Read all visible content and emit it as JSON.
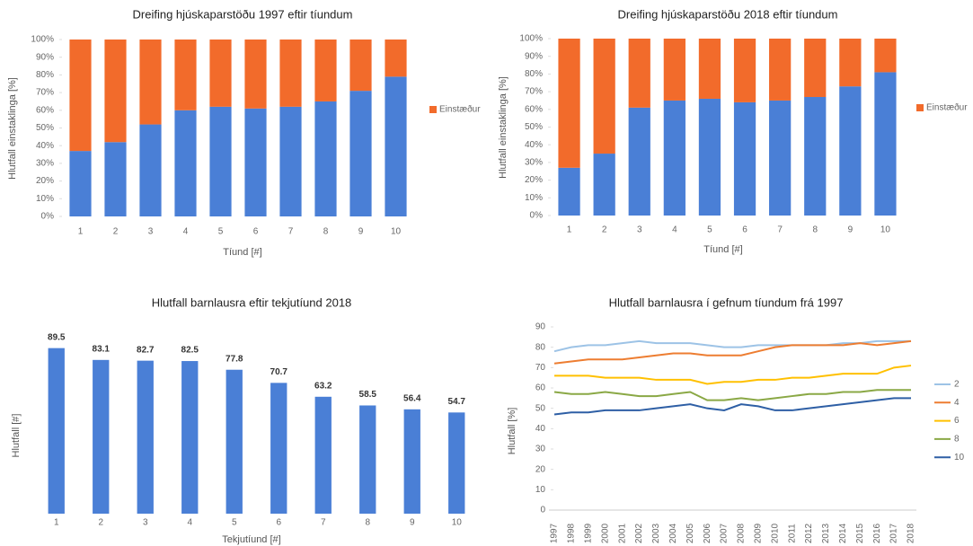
{
  "chart_data": [
    {
      "type": "bar",
      "stacked": true,
      "title": "Dreifing hjúskaparstöðu 1997 eftir tíundum",
      "x_label": "Tíund [#]",
      "y_label": "Hlutfall einstaklinga [%]",
      "categories": [
        "1",
        "2",
        "3",
        "4",
        "5",
        "6",
        "7",
        "8",
        "9",
        "10"
      ],
      "series": [
        {
          "color": "#4a7fd6",
          "values": [
            37,
            42,
            52,
            60,
            62,
            61,
            62,
            65,
            71,
            79
          ]
        },
        {
          "name": "Einstæður",
          "color": "#f26b2b",
          "values": [
            63,
            58,
            48,
            40,
            38,
            39,
            38,
            35,
            29,
            21
          ]
        }
      ],
      "ylim": [
        0,
        100
      ],
      "yticks": [
        {
          "value": 0,
          "label": "0%"
        },
        {
          "value": 10,
          "label": "10%"
        },
        {
          "value": 20,
          "label": "20%"
        },
        {
          "value": 30,
          "label": "30%"
        },
        {
          "value": 40,
          "label": "40%"
        },
        {
          "value": 50,
          "label": "50%"
        },
        {
          "value": 60,
          "label": "60%"
        },
        {
          "value": 70,
          "label": "70%"
        },
        {
          "value": 80,
          "label": "80%"
        },
        {
          "value": 90,
          "label": "90%"
        },
        {
          "value": 100,
          "label": "100%"
        }
      ],
      "legend": "right"
    },
    {
      "type": "bar",
      "stacked": true,
      "title": "Dreifing hjúskaparstöðu 2018 eftir tíundum",
      "x_label": "Tíund [#]",
      "y_label": "Hlutfall einstaklinga [%]",
      "categories": [
        "1",
        "2",
        "3",
        "4",
        "5",
        "6",
        "7",
        "8",
        "9",
        "10"
      ],
      "series": [
        {
          "color": "#4a7fd6",
          "values": [
            27,
            35,
            61,
            65,
            66,
            64,
            65,
            67,
            73,
            81
          ]
        },
        {
          "name": "Einstæður",
          "color": "#f26b2b",
          "values": [
            73,
            65,
            39,
            35,
            34,
            36,
            35,
            33,
            27,
            19
          ]
        }
      ],
      "ylim": [
        0,
        100
      ],
      "yticks": [
        {
          "value": 0,
          "label": "0%"
        },
        {
          "value": 10,
          "label": "10%"
        },
        {
          "value": 20,
          "label": "20%"
        },
        {
          "value": 30,
          "label": "30%"
        },
        {
          "value": 40,
          "label": "40%"
        },
        {
          "value": 50,
          "label": "50%"
        },
        {
          "value": 60,
          "label": "60%"
        },
        {
          "value": 70,
          "label": "70%"
        },
        {
          "value": 80,
          "label": "80%"
        },
        {
          "value": 90,
          "label": "90%"
        },
        {
          "value": 100,
          "label": "100%"
        }
      ],
      "legend": "right"
    },
    {
      "type": "bar",
      "title": "Hlutfall barnlausra eftir tekjutíund 2018",
      "x_label": "Tekjutíund [#]",
      "y_label": "Hlutfall [#]",
      "categories": [
        "1",
        "2",
        "3",
        "4",
        "5",
        "6",
        "7",
        "8",
        "9",
        "10"
      ],
      "series": [
        {
          "color": "#4a7fd6",
          "values": [
            89.5,
            83.1,
            82.7,
            82.5,
            77.8,
            70.7,
            63.2,
            58.5,
            56.4,
            54.7
          ]
        }
      ],
      "ylim": [
        0,
        100
      ],
      "data_labels": true
    },
    {
      "type": "line",
      "title": "Hlutfall barnlausra í gefnum tíundum frá 1997",
      "y_label": "Hlutfall [%]",
      "x": [
        1997,
        1998,
        1999,
        2000,
        2001,
        2002,
        2003,
        2004,
        2005,
        2006,
        2007,
        2008,
        2009,
        2010,
        2011,
        2012,
        2013,
        2014,
        2015,
        2016,
        2017,
        2018
      ],
      "xlim": [
        1997,
        2018
      ],
      "series": [
        {
          "name": "2",
          "color": "#9dc3e6",
          "values": [
            78,
            80,
            81,
            81,
            82,
            83,
            82,
            82,
            82,
            81,
            80,
            80,
            81,
            81,
            81,
            81,
            81,
            82,
            82,
            83,
            83,
            83
          ]
        },
        {
          "name": "4",
          "color": "#ed7d31",
          "values": [
            72,
            73,
            74,
            74,
            74,
            75,
            76,
            77,
            77,
            76,
            76,
            76,
            78,
            80,
            81,
            81,
            81,
            81,
            82,
            81,
            82,
            83
          ]
        },
        {
          "name": "6",
          "color": "#ffc000",
          "values": [
            66,
            66,
            66,
            65,
            65,
            65,
            64,
            64,
            64,
            62,
            63,
            63,
            64,
            64,
            65,
            65,
            66,
            67,
            67,
            67,
            70,
            71
          ]
        },
        {
          "name": "8",
          "color": "#8aa845",
          "values": [
            58,
            57,
            57,
            58,
            57,
            56,
            56,
            57,
            58,
            54,
            54,
            55,
            54,
            55,
            56,
            57,
            57,
            58,
            58,
            59,
            59,
            59
          ]
        },
        {
          "name": "10",
          "color": "#2e5fa5",
          "values": [
            47,
            48,
            48,
            49,
            49,
            49,
            50,
            51,
            52,
            50,
            49,
            52,
            51,
            49,
            49,
            50,
            51,
            52,
            53,
            54,
            55,
            55
          ]
        }
      ],
      "ylim": [
        0,
        90
      ],
      "yticks": [
        0,
        10,
        20,
        30,
        40,
        50,
        60,
        70,
        80,
        90
      ],
      "legend": "right"
    }
  ]
}
